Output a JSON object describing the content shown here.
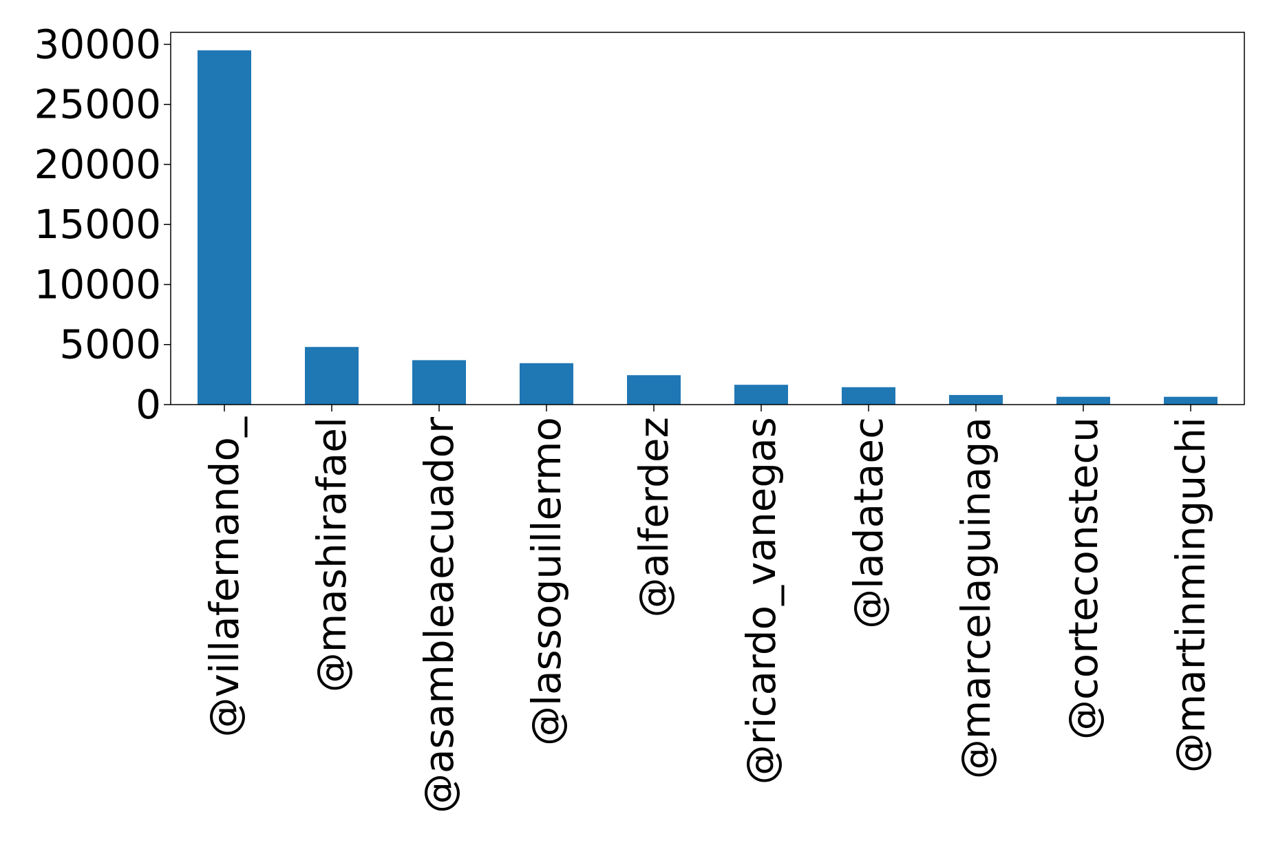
{
  "chart_data": {
    "type": "bar",
    "title": "",
    "xlabel": "",
    "ylabel": "",
    "categories": [
      "@villafernando_",
      "@mashirafael",
      "@asambleaecuador",
      "@lassoguillermo",
      "@alferdez",
      "@ricardo_vanegas",
      "@ladataec",
      "@marcelaguinaga",
      "@corteconstecu",
      "@martinminguchi"
    ],
    "values": [
      29500,
      4800,
      3700,
      3450,
      2450,
      1650,
      1450,
      800,
      650,
      650
    ],
    "ylim": [
      0,
      31000
    ],
    "yticks": [
      0,
      5000,
      10000,
      15000,
      20000,
      25000,
      30000
    ],
    "ytick_labels": [
      "0",
      "5000",
      "10000",
      "15000",
      "20000",
      "25000",
      "30000"
    ],
    "bar_color": "#1f77b4",
    "grid": false,
    "legend": "none"
  }
}
